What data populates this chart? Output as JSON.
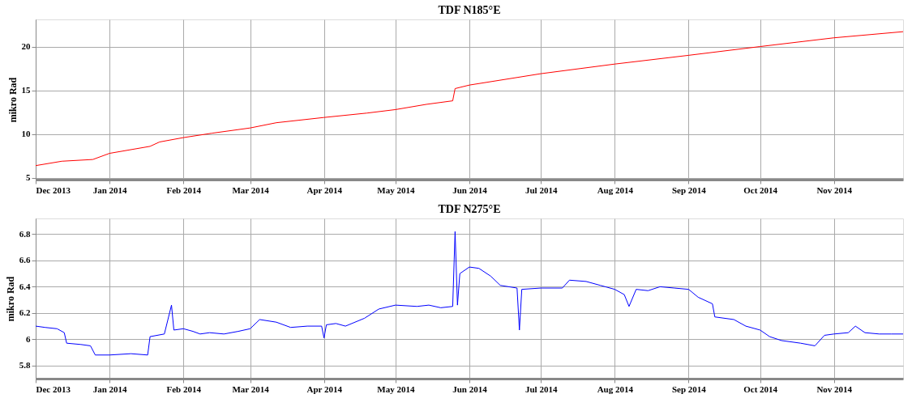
{
  "chart_data": [
    {
      "type": "line",
      "title": "TDF N185°E",
      "ylabel": "mikro Rad",
      "grid": true,
      "marker": "none",
      "line_style": "solid",
      "xlim": [
        "2013-12-01",
        "2014-11-30"
      ],
      "ylim": [
        4.8,
        23.1
      ],
      "yticks": [
        5,
        10,
        15,
        20
      ],
      "xticks": [
        {
          "value": "2013-12-01",
          "label": "Dec 2013"
        },
        {
          "value": "2014-01-01",
          "label": "Jan 2014"
        },
        {
          "value": "2014-02-01",
          "label": "Feb 2014"
        },
        {
          "value": "2014-03-01",
          "label": "Mar 2014"
        },
        {
          "value": "2014-04-01",
          "label": "Apr 2014"
        },
        {
          "value": "2014-05-01",
          "label": "May 2014"
        },
        {
          "value": "2014-06-01",
          "label": "Jun 2014"
        },
        {
          "value": "2014-07-01",
          "label": "Jul 2014"
        },
        {
          "value": "2014-08-01",
          "label": "Aug 2014"
        },
        {
          "value": "2014-09-01",
          "label": "Sep 2014"
        },
        {
          "value": "2014-10-01",
          "label": "Oct 2014"
        },
        {
          "value": "2014-11-01",
          "label": "Nov 2014"
        }
      ],
      "x": [
        "2013-12-01",
        "2013-12-12",
        "2013-12-25",
        "2014-01-01",
        "2014-01-18",
        "2014-01-22",
        "2014-02-01",
        "2014-02-13",
        "2014-03-01",
        "2014-03-12",
        "2014-04-01",
        "2014-04-19",
        "2014-05-01",
        "2014-05-14",
        "2014-05-25",
        "2014-05-26",
        "2014-06-01",
        "2014-07-01",
        "2014-08-01",
        "2014-09-01",
        "2014-10-01",
        "2014-11-01",
        "2014-11-30"
      ],
      "series": [
        {
          "color": "#ff0000",
          "values": [
            6.4,
            6.9,
            7.1,
            7.8,
            8.6,
            9.1,
            9.6,
            10.1,
            10.7,
            11.3,
            11.9,
            12.4,
            12.8,
            13.4,
            13.8,
            15.2,
            15.6,
            16.9,
            18.0,
            19.0,
            20.0,
            21.0,
            21.7
          ]
        }
      ]
    },
    {
      "type": "line",
      "title": "TDF N275°E",
      "ylabel": "mikro Rad",
      "grid": true,
      "marker": "none",
      "line_style": "solid",
      "xlim": [
        "2013-12-01",
        "2014-11-30"
      ],
      "ylim": [
        5.7,
        6.92
      ],
      "yticks": [
        5.8,
        6,
        6.2,
        6.4,
        6.6,
        6.8
      ],
      "xticks": [
        {
          "value": "2013-12-01",
          "label": "Dec 2013"
        },
        {
          "value": "2014-01-01",
          "label": "Jan 2014"
        },
        {
          "value": "2014-02-01",
          "label": "Feb 2014"
        },
        {
          "value": "2014-03-01",
          "label": "Mar 2014"
        },
        {
          "value": "2014-04-01",
          "label": "Apr 2014"
        },
        {
          "value": "2014-05-01",
          "label": "May 2014"
        },
        {
          "value": "2014-06-01",
          "label": "Jun 2014"
        },
        {
          "value": "2014-07-01",
          "label": "Jul 2014"
        },
        {
          "value": "2014-08-01",
          "label": "Aug 2014"
        },
        {
          "value": "2014-09-01",
          "label": "Sep 2014"
        },
        {
          "value": "2014-10-01",
          "label": "Oct 2014"
        },
        {
          "value": "2014-11-01",
          "label": "Nov 2014"
        }
      ],
      "x": [
        "2013-12-01",
        "2013-12-05",
        "2013-12-10",
        "2013-12-13",
        "2013-12-14",
        "2013-12-20",
        "2013-12-24",
        "2013-12-26",
        "2014-01-01",
        "2014-01-10",
        "2014-01-17",
        "2014-01-18",
        "2014-01-24",
        "2014-01-27",
        "2014-01-28",
        "2014-02-01",
        "2014-02-05",
        "2014-02-08",
        "2014-02-12",
        "2014-02-18",
        "2014-02-24",
        "2014-03-01",
        "2014-03-05",
        "2014-03-12",
        "2014-03-18",
        "2014-03-25",
        "2014-03-31",
        "2014-04-01",
        "2014-04-02",
        "2014-04-06",
        "2014-04-10",
        "2014-04-18",
        "2014-04-24",
        "2014-05-01",
        "2014-05-10",
        "2014-05-15",
        "2014-05-20",
        "2014-05-25",
        "2014-05-26",
        "2014-05-27",
        "2014-05-28",
        "2014-06-01",
        "2014-06-05",
        "2014-06-10",
        "2014-06-14",
        "2014-06-21",
        "2014-06-22",
        "2014-06-23",
        "2014-07-01",
        "2014-07-10",
        "2014-07-13",
        "2014-07-20",
        "2014-07-26",
        "2014-08-01",
        "2014-08-05",
        "2014-08-07",
        "2014-08-10",
        "2014-08-15",
        "2014-08-20",
        "2014-08-26",
        "2014-09-01",
        "2014-09-05",
        "2014-09-11",
        "2014-09-12",
        "2014-09-20",
        "2014-09-25",
        "2014-10-01",
        "2014-10-05",
        "2014-10-10",
        "2014-10-18",
        "2014-10-24",
        "2014-10-28",
        "2014-11-01",
        "2014-11-07",
        "2014-11-10",
        "2014-11-14",
        "2014-11-20",
        "2014-11-25",
        "2014-11-30"
      ],
      "series": [
        {
          "color": "#0000ff",
          "values": [
            6.1,
            6.09,
            6.08,
            6.05,
            5.97,
            5.96,
            5.95,
            5.88,
            5.88,
            5.89,
            5.88,
            6.02,
            6.04,
            6.26,
            6.07,
            6.08,
            6.06,
            6.04,
            6.05,
            6.04,
            6.06,
            6.08,
            6.15,
            6.13,
            6.09,
            6.1,
            6.1,
            6.01,
            6.11,
            6.12,
            6.1,
            6.16,
            6.23,
            6.26,
            6.25,
            6.26,
            6.24,
            6.25,
            6.82,
            6.26,
            6.5,
            6.55,
            6.54,
            6.48,
            6.41,
            6.39,
            6.07,
            6.38,
            6.39,
            6.39,
            6.45,
            6.44,
            6.41,
            6.38,
            6.34,
            6.25,
            6.38,
            6.37,
            6.4,
            6.39,
            6.38,
            6.32,
            6.27,
            6.17,
            6.15,
            6.1,
            6.07,
            6.02,
            5.99,
            5.97,
            5.95,
            6.03,
            6.04,
            6.05,
            6.1,
            6.05,
            6.04,
            6.04,
            6.04
          ]
        }
      ]
    }
  ]
}
